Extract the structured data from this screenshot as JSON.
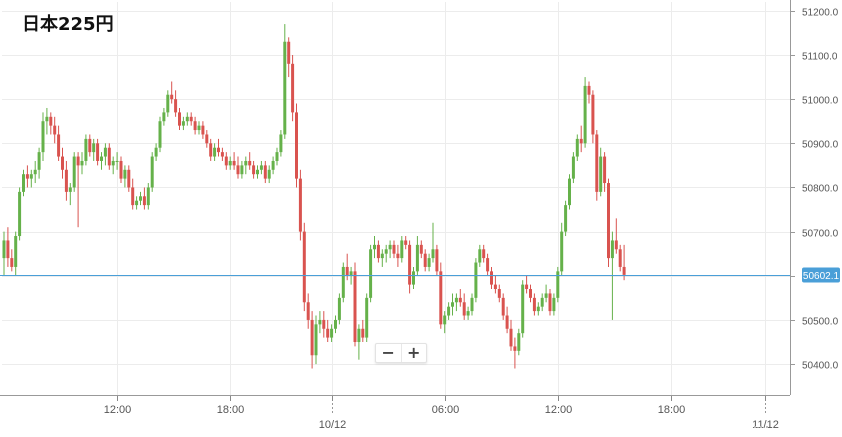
{
  "title": "日本225円",
  "controls": {
    "zoom_out": "−",
    "zoom_in": "+"
  },
  "colors": {
    "up": "#65b14a",
    "down": "#d9534f",
    "grid": "#ececec",
    "price_line": "#4a9fd8",
    "axis": "#555555"
  },
  "chart_data": {
    "type": "candlestick",
    "ylim": [
      50330,
      51220
    ],
    "y_ticks": [
      {
        "value": 51200,
        "label": "51200.0"
      },
      {
        "value": 51100,
        "label": "51100.0"
      },
      {
        "value": 51000,
        "label": "51000.0"
      },
      {
        "value": 50900,
        "label": "50900.0"
      },
      {
        "value": 50800,
        "label": "50800.0"
      },
      {
        "value": 50700,
        "label": "50700.0"
      },
      {
        "value": 50600,
        "label": "50600.0"
      },
      {
        "value": 50500,
        "label": "50500.0"
      },
      {
        "value": 50400,
        "label": "50400.0"
      }
    ],
    "x_ticks": [
      {
        "index": 29,
        "label": "12:00",
        "major": false
      },
      {
        "index": 58,
        "label": "18:00",
        "major": false
      },
      {
        "index": 84,
        "label": "10/12",
        "major": true
      },
      {
        "index": 113,
        "label": "06:00",
        "major": false
      },
      {
        "index": 142,
        "label": "12:00",
        "major": false
      },
      {
        "index": 171,
        "label": "18:00",
        "major": false
      },
      {
        "index": 195,
        "label": "11/12",
        "major": true
      }
    ],
    "last_price": 50602.1,
    "last_price_label": "50602.1",
    "candles": [
      [
        50640,
        50700,
        50600,
        50680
      ],
      [
        50680,
        50710,
        50620,
        50640
      ],
      [
        50640,
        50660,
        50610,
        50620
      ],
      [
        50620,
        50700,
        50600,
        50690
      ],
      [
        50690,
        50800,
        50680,
        50790
      ],
      [
        50790,
        50840,
        50780,
        50830
      ],
      [
        50830,
        50850,
        50800,
        50820
      ],
      [
        50820,
        50840,
        50800,
        50830
      ],
      [
        50830,
        50860,
        50810,
        50840
      ],
      [
        50840,
        50890,
        50820,
        50880
      ],
      [
        50880,
        50970,
        50860,
        50950
      ],
      [
        50950,
        50980,
        50920,
        50960
      ],
      [
        50960,
        50970,
        50920,
        50940
      ],
      [
        50940,
        50960,
        50900,
        50920
      ],
      [
        50920,
        50940,
        50860,
        50870
      ],
      [
        50870,
        50890,
        50820,
        50840
      ],
      [
        50840,
        50860,
        50770,
        50790
      ],
      [
        50790,
        50810,
        50760,
        50800
      ],
      [
        50800,
        50880,
        50790,
        50870
      ],
      [
        50870,
        50880,
        50710,
        50850
      ],
      [
        50850,
        50880,
        50830,
        50860
      ],
      [
        50860,
        50920,
        50850,
        50910
      ],
      [
        50910,
        50920,
        50870,
        50880
      ],
      [
        50880,
        50910,
        50860,
        50900
      ],
      [
        50900,
        50910,
        50850,
        50860
      ],
      [
        50860,
        50880,
        50840,
        50870
      ],
      [
        50870,
        50900,
        50850,
        50890
      ],
      [
        50890,
        50900,
        50840,
        50850
      ],
      [
        50850,
        50870,
        50830,
        50860
      ],
      [
        50860,
        50880,
        50840,
        50860
      ],
      [
        50860,
        50870,
        50810,
        50820
      ],
      [
        50820,
        50850,
        50800,
        50840
      ],
      [
        50840,
        50850,
        50790,
        50800
      ],
      [
        50800,
        50820,
        50750,
        50760
      ],
      [
        50760,
        50780,
        50750,
        50770
      ],
      [
        50770,
        50790,
        50760,
        50780
      ],
      [
        50780,
        50800,
        50750,
        50760
      ],
      [
        50760,
        50810,
        50750,
        50800
      ],
      [
        50800,
        50880,
        50790,
        50870
      ],
      [
        50870,
        50900,
        50860,
        50890
      ],
      [
        50890,
        50960,
        50880,
        50950
      ],
      [
        50950,
        50980,
        50940,
        50970
      ],
      [
        50970,
        51020,
        50960,
        51010
      ],
      [
        51010,
        51040,
        50990,
        51000
      ],
      [
        51000,
        51020,
        50960,
        50970
      ],
      [
        50970,
        50980,
        50930,
        50940
      ],
      [
        50940,
        50960,
        50930,
        50950
      ],
      [
        50950,
        50970,
        50940,
        50960
      ],
      [
        50960,
        50970,
        50940,
        50950
      ],
      [
        50950,
        50960,
        50920,
        50930
      ],
      [
        50930,
        50950,
        50920,
        50940
      ],
      [
        50940,
        50950,
        50910,
        50920
      ],
      [
        50920,
        50930,
        50890,
        50900
      ],
      [
        50900,
        50910,
        50860,
        50870
      ],
      [
        50870,
        50900,
        50860,
        50890
      ],
      [
        50890,
        50910,
        50870,
        50880
      ],
      [
        50880,
        50890,
        50860,
        50870
      ],
      [
        50870,
        50880,
        50840,
        50850
      ],
      [
        50850,
        50870,
        50840,
        50860
      ],
      [
        50860,
        50880,
        50840,
        50850
      ],
      [
        50850,
        50870,
        50820,
        50830
      ],
      [
        50830,
        50860,
        50820,
        50850
      ],
      [
        50850,
        50870,
        50830,
        50860
      ],
      [
        50860,
        50880,
        50840,
        50850
      ],
      [
        50850,
        50860,
        50820,
        50830
      ],
      [
        50830,
        50850,
        50820,
        50840
      ],
      [
        50840,
        50860,
        50830,
        50850
      ],
      [
        50850,
        50860,
        50810,
        50820
      ],
      [
        50820,
        50850,
        50810,
        50840
      ],
      [
        50840,
        50870,
        50830,
        50860
      ],
      [
        50860,
        50890,
        50850,
        50880
      ],
      [
        50880,
        50930,
        50870,
        50920
      ],
      [
        50920,
        51170,
        50910,
        51130
      ],
      [
        51130,
        51140,
        51050,
        51080
      ],
      [
        51080,
        51100,
        50950,
        50970
      ],
      [
        50970,
        50990,
        50800,
        50820
      ],
      [
        50820,
        50840,
        50680,
        50700
      ],
      [
        50700,
        50720,
        50520,
        50540
      ],
      [
        50540,
        50560,
        50480,
        50500
      ],
      [
        50500,
        50520,
        50390,
        50420
      ],
      [
        50420,
        50510,
        50400,
        50490
      ],
      [
        50490,
        50520,
        50470,
        50500
      ],
      [
        50500,
        50520,
        50460,
        50480
      ],
      [
        50480,
        50500,
        50450,
        50460
      ],
      [
        50460,
        50490,
        50450,
        50480
      ],
      [
        50480,
        50510,
        50470,
        50500
      ],
      [
        50500,
        50560,
        50490,
        50550
      ],
      [
        50550,
        50630,
        50540,
        50620
      ],
      [
        50620,
        50650,
        50590,
        50600
      ],
      [
        50600,
        50620,
        50580,
        50610
      ],
      [
        50610,
        50630,
        50440,
        50450
      ],
      [
        50450,
        50490,
        50410,
        50480
      ],
      [
        50480,
        50500,
        50450,
        50460
      ],
      [
        50460,
        50560,
        50450,
        50550
      ],
      [
        50550,
        50670,
        50540,
        50660
      ],
      [
        50660,
        50690,
        50640,
        50670
      ],
      [
        50670,
        50680,
        50630,
        50640
      ],
      [
        50640,
        50660,
        50620,
        50650
      ],
      [
        50650,
        50670,
        50630,
        50660
      ],
      [
        50660,
        50680,
        50640,
        50670
      ],
      [
        50670,
        50680,
        50640,
        50650
      ],
      [
        50650,
        50670,
        50620,
        50640
      ],
      [
        50640,
        50690,
        50630,
        50680
      ],
      [
        50680,
        50690,
        50660,
        50670
      ],
      [
        50670,
        50680,
        50560,
        50580
      ],
      [
        50580,
        50620,
        50570,
        50610
      ],
      [
        50610,
        50690,
        50600,
        50670
      ],
      [
        50670,
        50680,
        50640,
        50650
      ],
      [
        50650,
        50660,
        50610,
        50620
      ],
      [
        50620,
        50650,
        50610,
        50640
      ],
      [
        50640,
        50720,
        50630,
        50660
      ],
      [
        50660,
        50670,
        50600,
        50610
      ],
      [
        50610,
        50630,
        50480,
        50490
      ],
      [
        50490,
        50520,
        50470,
        50510
      ],
      [
        50510,
        50540,
        50500,
        50530
      ],
      [
        50530,
        50560,
        50510,
        50540
      ],
      [
        50540,
        50560,
        50520,
        50550
      ],
      [
        50550,
        50570,
        50530,
        50540
      ],
      [
        50540,
        50560,
        50500,
        50510
      ],
      [
        50510,
        50530,
        50500,
        50520
      ],
      [
        50520,
        50560,
        50510,
        50550
      ],
      [
        50550,
        50640,
        50540,
        50630
      ],
      [
        50630,
        50670,
        50620,
        50660
      ],
      [
        50660,
        50670,
        50630,
        50640
      ],
      [
        50640,
        50650,
        50600,
        50610
      ],
      [
        50610,
        50620,
        50570,
        50580
      ],
      [
        50580,
        50600,
        50560,
        50570
      ],
      [
        50570,
        50580,
        50540,
        50550
      ],
      [
        50550,
        50560,
        50500,
        50510
      ],
      [
        50510,
        50530,
        50470,
        50480
      ],
      [
        50480,
        50500,
        50430,
        50440
      ],
      [
        50440,
        50460,
        50390,
        50430
      ],
      [
        50430,
        50480,
        50420,
        50470
      ],
      [
        50470,
        50590,
        50460,
        50580
      ],
      [
        50580,
        50600,
        50560,
        50570
      ],
      [
        50570,
        50580,
        50540,
        50550
      ],
      [
        50550,
        50560,
        50510,
        50520
      ],
      [
        50520,
        50540,
        50510,
        50530
      ],
      [
        50530,
        50560,
        50520,
        50550
      ],
      [
        50550,
        50580,
        50540,
        50560
      ],
      [
        50560,
        50570,
        50510,
        50520
      ],
      [
        50520,
        50560,
        50510,
        50550
      ],
      [
        50550,
        50620,
        50540,
        50610
      ],
      [
        50610,
        50720,
        50600,
        50700
      ],
      [
        50700,
        50770,
        50690,
        50760
      ],
      [
        50760,
        50830,
        50750,
        50820
      ],
      [
        50820,
        50880,
        50810,
        50870
      ],
      [
        50870,
        50920,
        50860,
        50910
      ],
      [
        50910,
        50940,
        50880,
        50900
      ],
      [
        50900,
        51050,
        50890,
        51030
      ],
      [
        51030,
        51040,
        50990,
        51010
      ],
      [
        51010,
        51020,
        50900,
        50920
      ],
      [
        50920,
        50930,
        50770,
        50790
      ],
      [
        50790,
        50890,
        50780,
        50870
      ],
      [
        50870,
        50880,
        50790,
        50810
      ],
      [
        50810,
        50820,
        50620,
        50640
      ],
      [
        50640,
        50700,
        50500,
        50680
      ],
      [
        50680,
        50730,
        50650,
        50660
      ],
      [
        50660,
        50670,
        50610,
        50620
      ],
      [
        50620,
        50670,
        50590,
        50602
      ]
    ]
  }
}
